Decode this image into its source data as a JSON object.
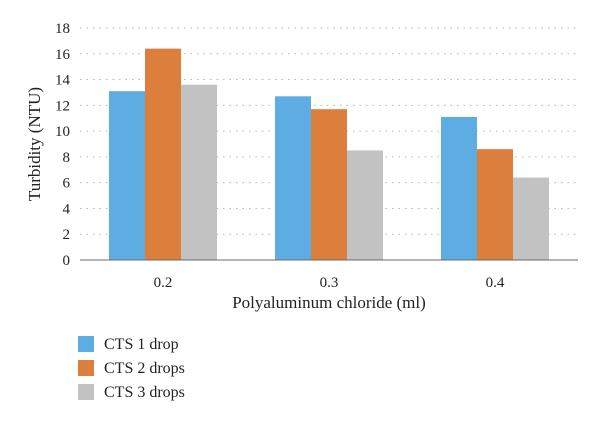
{
  "chart_data": {
    "type": "bar",
    "categories": [
      "0.2",
      "0.3",
      "0.4"
    ],
    "series": [
      {
        "name": "CTS 1 drop",
        "values": [
          13.1,
          12.7,
          11.1
        ],
        "color": "#5dade2"
      },
      {
        "name": "CTS 2 drops",
        "values": [
          16.4,
          11.7,
          8.6
        ],
        "color": "#dc7f3c"
      },
      {
        "name": "CTS 3 drops",
        "values": [
          13.6,
          8.5,
          6.4
        ],
        "color": "#c2c2c2"
      }
    ],
    "xlabel": "Polyaluminum chloride (ml)",
    "ylabel": "Turbidity (NTU)",
    "ylim": [
      0,
      18
    ],
    "yticks": [
      "0",
      "2",
      "4",
      "6",
      "8",
      "10",
      "12",
      "14",
      "16",
      "18"
    ],
    "grid": true,
    "legend_position": "bottom-left"
  }
}
